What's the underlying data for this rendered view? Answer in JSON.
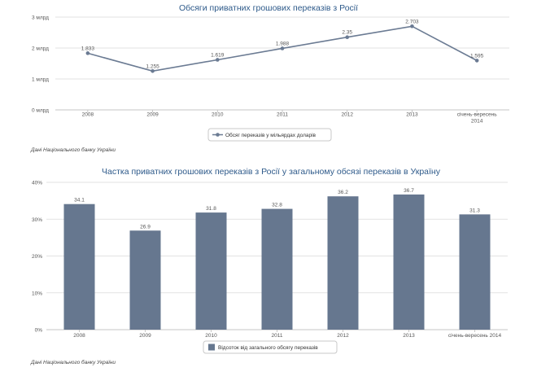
{
  "chart_data": [
    {
      "type": "line",
      "title": "Обсяги приватних грошових переказів з Росії",
      "categories": [
        "2008",
        "2009",
        "2010",
        "2011",
        "2012",
        "2013",
        "січень-вересень 2014"
      ],
      "category_lines": [
        [
          "2008"
        ],
        [
          "2009"
        ],
        [
          "2010"
        ],
        [
          "2011"
        ],
        [
          "2012"
        ],
        [
          "2013"
        ],
        [
          "січень-вересень",
          "2014"
        ]
      ],
      "values": [
        1.833,
        1.255,
        1.619,
        1.988,
        2.35,
        2.703,
        1.595
      ],
      "value_labels": [
        "1.833",
        "1.255",
        "1.619",
        "1.988",
        "2.35",
        "2.703",
        "1.595"
      ],
      "y_ticks": [
        0,
        1,
        2,
        3
      ],
      "y_tick_labels": [
        "0 млрд",
        "1 млрд",
        "2 млрд",
        "3 млрд"
      ],
      "ylim": [
        0,
        3
      ],
      "legend": "Обсяг переказів у мільярдах доларів",
      "color": "#6b7b93",
      "source": "Дані Національного банку України"
    },
    {
      "type": "bar",
      "title": "Частка приватних грошових переказів з Росії у загальному обсязі переказів в Україну",
      "categories": [
        "2008",
        "2009",
        "2010",
        "2011",
        "2012",
        "2013",
        "січень-вересень 2014"
      ],
      "values": [
        34.1,
        26.9,
        31.8,
        32.8,
        36.2,
        36.7,
        31.3
      ],
      "value_labels": [
        "34.1",
        "26.9",
        "31.8",
        "32.8",
        "36.2",
        "36.7",
        "31.3"
      ],
      "y_ticks": [
        0,
        10,
        20,
        30,
        40
      ],
      "y_tick_labels": [
        "0%",
        "10%",
        "20%",
        "30%",
        "40%"
      ],
      "ylim": [
        0,
        40
      ],
      "legend": "Відсоток від загального обсягу переказів",
      "color": "#66778f",
      "source": "Дані Національного банку України"
    }
  ]
}
